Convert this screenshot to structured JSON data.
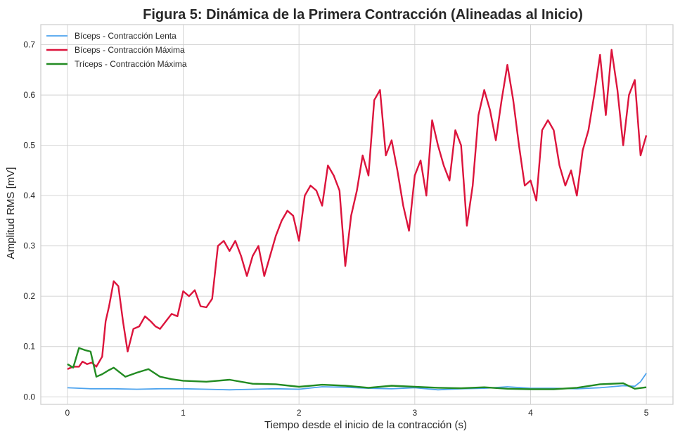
{
  "chart_data": {
    "type": "line",
    "title": "Figura 5: Dinámica de la Primera Contracción (Alineadas al Inicio)",
    "xlabel": "Tiempo desde el inicio de la contracción (s)",
    "ylabel": "Amplitud RMS [mV]",
    "xlim": [
      -0.23,
      5.23
    ],
    "ylim": [
      -0.015,
      0.74
    ],
    "xticks": [
      0,
      1,
      2,
      3,
      4,
      5
    ],
    "yticks": [
      0.0,
      0.1,
      0.2,
      0.3,
      0.4,
      0.5,
      0.6,
      0.7
    ],
    "grid": true,
    "legend": "top-left",
    "series": [
      {
        "name": "Bíceps - Contracción Lenta",
        "color": "#4da3ee",
        "x": [
          0,
          0.2,
          0.4,
          0.6,
          0.8,
          1.0,
          1.2,
          1.4,
          1.6,
          1.8,
          2.0,
          2.2,
          2.4,
          2.6,
          2.8,
          3.0,
          3.2,
          3.4,
          3.6,
          3.8,
          4.0,
          4.2,
          4.4,
          4.6,
          4.8,
          4.9,
          4.95,
          5.0
        ],
        "y": [
          0.018,
          0.016,
          0.016,
          0.015,
          0.016,
          0.016,
          0.015,
          0.014,
          0.015,
          0.016,
          0.015,
          0.02,
          0.019,
          0.017,
          0.016,
          0.018,
          0.014,
          0.016,
          0.017,
          0.02,
          0.017,
          0.017,
          0.016,
          0.018,
          0.022,
          0.021,
          0.03,
          0.047
        ]
      },
      {
        "name": "Bíceps - Contracción Máxima",
        "color": "#dc143c",
        "x": [
          0,
          0.05,
          0.1,
          0.13,
          0.17,
          0.21,
          0.25,
          0.3,
          0.33,
          0.36,
          0.4,
          0.44,
          0.48,
          0.52,
          0.57,
          0.62,
          0.67,
          0.72,
          0.76,
          0.8,
          0.85,
          0.9,
          0.95,
          1.0,
          1.05,
          1.1,
          1.15,
          1.2,
          1.25,
          1.3,
          1.35,
          1.4,
          1.45,
          1.5,
          1.55,
          1.6,
          1.65,
          1.7,
          1.75,
          1.8,
          1.85,
          1.9,
          1.95,
          2.0,
          2.05,
          2.1,
          2.15,
          2.2,
          2.25,
          2.3,
          2.35,
          2.4,
          2.45,
          2.5,
          2.55,
          2.6,
          2.65,
          2.7,
          2.75,
          2.8,
          2.85,
          2.9,
          2.95,
          3.0,
          3.05,
          3.1,
          3.15,
          3.2,
          3.25,
          3.3,
          3.35,
          3.4,
          3.45,
          3.5,
          3.55,
          3.6,
          3.65,
          3.7,
          3.75,
          3.8,
          3.85,
          3.9,
          3.95,
          4.0,
          4.05,
          4.1,
          4.15,
          4.2,
          4.25,
          4.3,
          4.35,
          4.4,
          4.45,
          4.5,
          4.55,
          4.6,
          4.65,
          4.7,
          4.75,
          4.8,
          4.85,
          4.9,
          4.95,
          5.0
        ],
        "y": [
          0.055,
          0.06,
          0.06,
          0.07,
          0.065,
          0.068,
          0.06,
          0.08,
          0.15,
          0.18,
          0.23,
          0.22,
          0.15,
          0.09,
          0.135,
          0.14,
          0.16,
          0.15,
          0.14,
          0.135,
          0.15,
          0.165,
          0.16,
          0.21,
          0.2,
          0.212,
          0.18,
          0.178,
          0.195,
          0.3,
          0.31,
          0.29,
          0.31,
          0.28,
          0.24,
          0.28,
          0.3,
          0.24,
          0.28,
          0.32,
          0.35,
          0.37,
          0.36,
          0.31,
          0.4,
          0.42,
          0.41,
          0.38,
          0.46,
          0.44,
          0.41,
          0.26,
          0.36,
          0.41,
          0.48,
          0.44,
          0.59,
          0.61,
          0.48,
          0.51,
          0.45,
          0.38,
          0.33,
          0.44,
          0.47,
          0.4,
          0.55,
          0.5,
          0.46,
          0.43,
          0.53,
          0.5,
          0.34,
          0.42,
          0.56,
          0.61,
          0.57,
          0.51,
          0.59,
          0.66,
          0.59,
          0.5,
          0.42,
          0.43,
          0.39,
          0.53,
          0.55,
          0.53,
          0.46,
          0.42,
          0.45,
          0.4,
          0.49,
          0.53,
          0.6,
          0.68,
          0.56,
          0.69,
          0.61,
          0.5,
          0.6,
          0.63,
          0.48,
          0.52
        ]
      },
      {
        "name": "Tríceps - Contracción Máxima",
        "color": "#228b22",
        "x": [
          0,
          0.05,
          0.1,
          0.15,
          0.2,
          0.25,
          0.3,
          0.35,
          0.4,
          0.5,
          0.6,
          0.7,
          0.8,
          0.9,
          1.0,
          1.2,
          1.4,
          1.6,
          1.8,
          2.0,
          2.2,
          2.4,
          2.6,
          2.8,
          3.0,
          3.2,
          3.4,
          3.6,
          3.8,
          4.0,
          4.2,
          4.4,
          4.6,
          4.8,
          4.9,
          5.0
        ],
        "y": [
          0.065,
          0.058,
          0.097,
          0.093,
          0.09,
          0.04,
          0.045,
          0.052,
          0.058,
          0.04,
          0.048,
          0.055,
          0.04,
          0.035,
          0.032,
          0.03,
          0.034,
          0.026,
          0.025,
          0.02,
          0.024,
          0.022,
          0.018,
          0.022,
          0.02,
          0.018,
          0.017,
          0.019,
          0.016,
          0.015,
          0.015,
          0.018,
          0.025,
          0.027,
          0.016,
          0.019
        ]
      }
    ]
  }
}
